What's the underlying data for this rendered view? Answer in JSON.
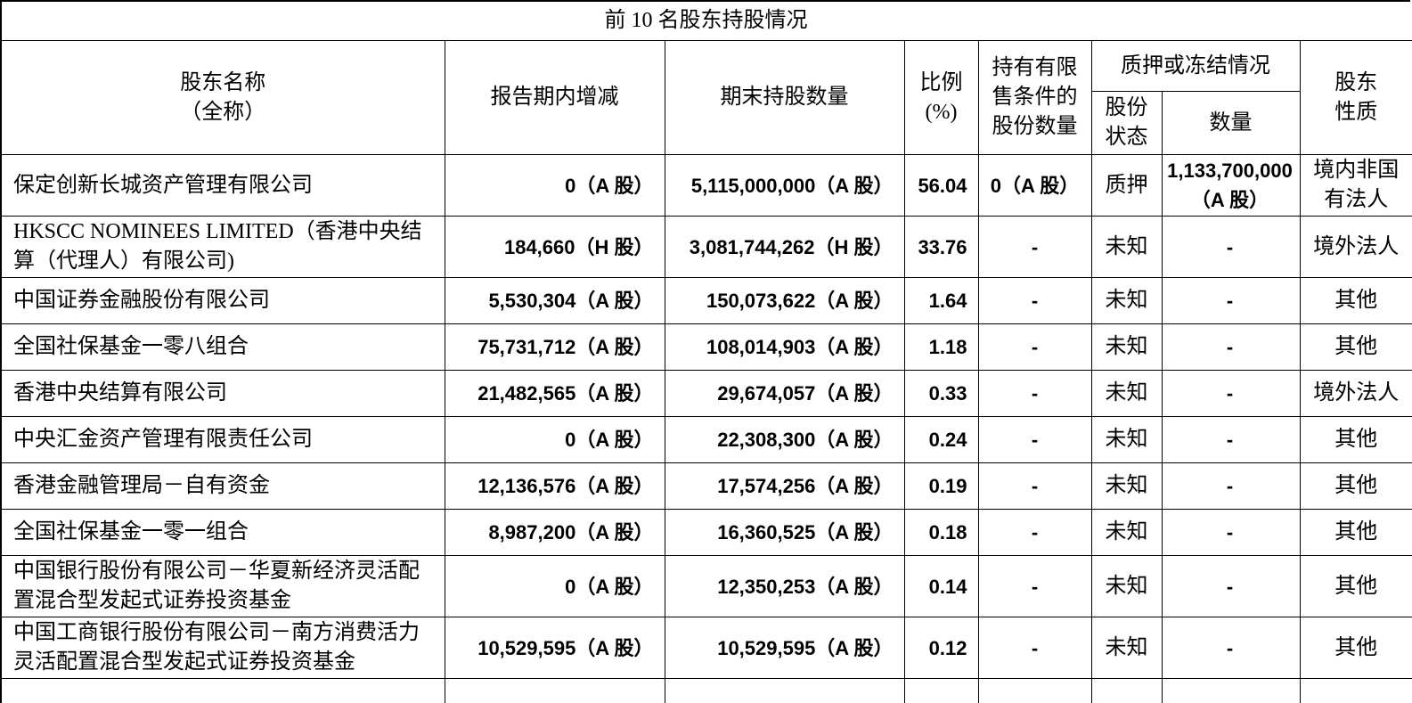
{
  "title": "前 10 名股东持股情况",
  "table": {
    "headers": {
      "name_line1": "股东名称",
      "name_line2": "（全称）",
      "change": "报告期内增减",
      "end_shares": "期末持股数量",
      "ratio_line1": "比例",
      "ratio_line2": "(%)",
      "restricted_line1": "持有有限",
      "restricted_line2": "售条件的",
      "restricted_line3": "股份数量",
      "pledge_group": "质押或冻结情况",
      "status_line1": "股份",
      "status_line2": "状态",
      "quantity": "数量",
      "nature_line1": "股东",
      "nature_line2": "性质"
    },
    "rows": [
      {
        "name": "保定创新长城资产管理有限公司",
        "change": "0（A 股）",
        "end_shares": "5,115,000,000（A 股）",
        "ratio": "56.04",
        "restricted": "0（A 股）",
        "status": "质押",
        "pledge_qty": "1,133,700,000 （A 股）",
        "nature": "境内非国有法人"
      },
      {
        "name": "HKSCC NOMINEES LIMITED（香港中央结算（代理人）有限公司)",
        "change": "184,660（H 股）",
        "end_shares": "3,081,744,262（H 股）",
        "ratio": "33.76",
        "restricted": "-",
        "status": "未知",
        "pledge_qty": "-",
        "nature": "境外法人"
      },
      {
        "name": "中国证券金融股份有限公司",
        "change": "5,530,304（A 股）",
        "end_shares": "150,073,622（A 股）",
        "ratio": "1.64",
        "restricted": "-",
        "status": "未知",
        "pledge_qty": "-",
        "nature": "其他"
      },
      {
        "name": "全国社保基金一零八组合",
        "change": "75,731,712（A 股）",
        "end_shares": "108,014,903（A 股）",
        "ratio": "1.18",
        "restricted": "-",
        "status": "未知",
        "pledge_qty": "-",
        "nature": "其他"
      },
      {
        "name": "香港中央结算有限公司",
        "change": "21,482,565（A 股）",
        "end_shares": "29,674,057（A 股）",
        "ratio": "0.33",
        "restricted": "-",
        "status": "未知",
        "pledge_qty": "-",
        "nature": "境外法人"
      },
      {
        "name": "中央汇金资产管理有限责任公司",
        "change": "0（A 股）",
        "end_shares": "22,308,300（A 股）",
        "ratio": "0.24",
        "restricted": "-",
        "status": "未知",
        "pledge_qty": "-",
        "nature": "其他"
      },
      {
        "name": "香港金融管理局－自有资金",
        "change": "12,136,576（A 股）",
        "end_shares": "17,574,256（A 股）",
        "ratio": "0.19",
        "restricted": "-",
        "status": "未知",
        "pledge_qty": "-",
        "nature": "其他"
      },
      {
        "name": "全国社保基金一零一组合",
        "change": "8,987,200（A 股）",
        "end_shares": "16,360,525（A 股）",
        "ratio": "0.18",
        "restricted": "-",
        "status": "未知",
        "pledge_qty": "-",
        "nature": "其他"
      },
      {
        "name": "中国银行股份有限公司－华夏新经济灵活配置混合型发起式证券投资基金",
        "change": "0（A 股）",
        "end_shares": "12,350,253（A 股）",
        "ratio": "0.14",
        "restricted": "-",
        "status": "未知",
        "pledge_qty": "-",
        "nature": "其他"
      },
      {
        "name": "中国工商银行股份有限公司－南方消费活力灵活配置混合型发起式证券投资基金",
        "change": "10,529,595（A 股）",
        "end_shares": "10,529,595（A 股）",
        "ratio": "0.12",
        "restricted": "-",
        "status": "未知",
        "pledge_qty": "-",
        "nature": "其他"
      }
    ]
  }
}
